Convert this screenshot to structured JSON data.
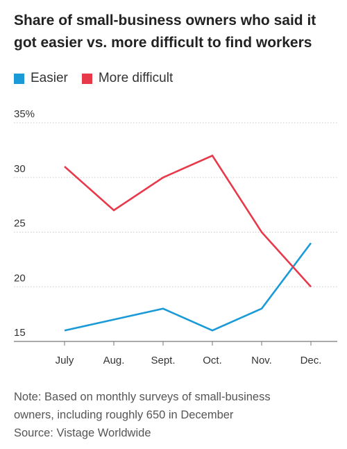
{
  "title_lines": [
    "Share of small-business owners who said it",
    "got easier vs. more difficult to find workers"
  ],
  "legend": [
    {
      "label": "Easier",
      "color": "#1a9ad6"
    },
    {
      "label": "More difficult",
      "color": "#e8394a"
    }
  ],
  "chart_data": {
    "type": "line",
    "title": "Share of small-business owners who said it got easier vs. more difficult to find workers",
    "categories": [
      "July",
      "Aug.",
      "Sept.",
      "Oct.",
      "Nov.",
      "Dec."
    ],
    "series": [
      {
        "name": "Easier",
        "color": "#1a9ad6",
        "values": [
          16,
          17,
          18,
          16,
          18,
          24
        ]
      },
      {
        "name": "More difficult",
        "color": "#e8394a",
        "values": [
          31,
          27,
          30,
          32,
          25,
          20
        ]
      }
    ],
    "ylim": [
      15,
      35
    ],
    "yticks": [
      15,
      20,
      25,
      30,
      35
    ],
    "ytick_labels": [
      "15",
      "20",
      "25",
      "30",
      "35%"
    ],
    "grid": "horizontal dotted",
    "xlabel": "",
    "ylabel": ""
  },
  "notes": [
    "Note: Based on monthly surveys of small-business",
    "owners, including roughly 650 in December",
    "Source: Vistage Worldwide"
  ]
}
